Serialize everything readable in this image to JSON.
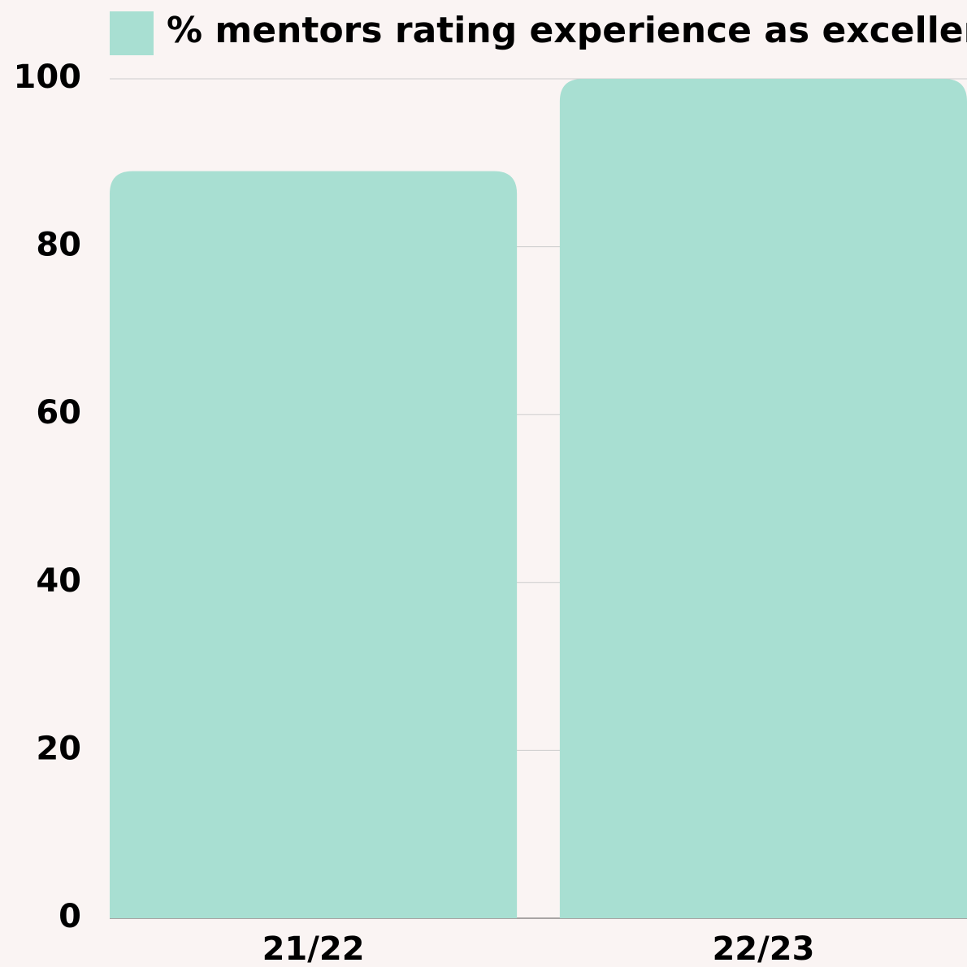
{
  "chart_data": {
    "type": "bar",
    "categories": [
      "21/22",
      "22/23"
    ],
    "series": [
      {
        "name": "% mentors rating experience as excellent",
        "color": "#a8dfd2",
        "values": [
          89,
          100
        ]
      }
    ],
    "ylim": [
      0,
      100
    ],
    "yticks": [
      0,
      20,
      40,
      60,
      80,
      100
    ],
    "grid": true,
    "legend": "top"
  }
}
